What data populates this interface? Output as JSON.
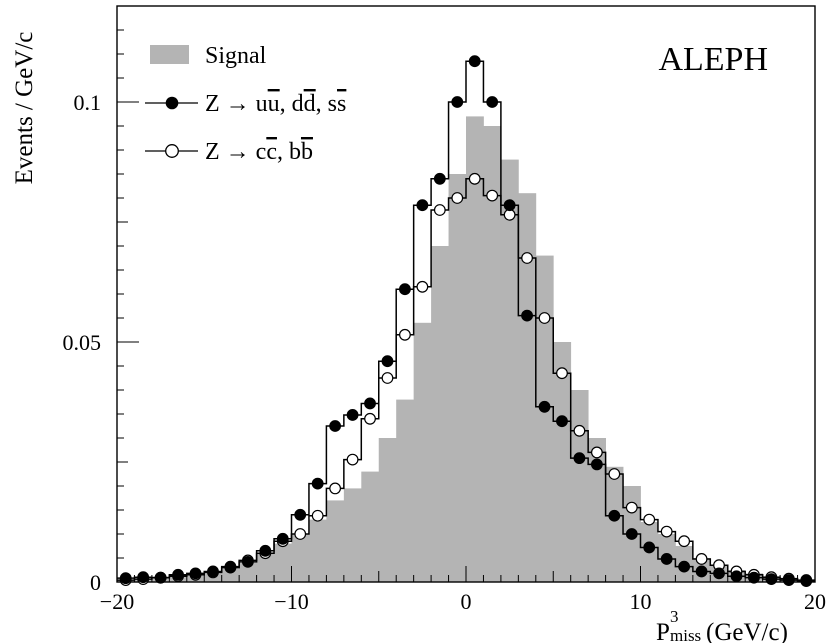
{
  "chart_data": {
    "type": "histogram",
    "logo": "ALEPH",
    "xlabel_base": "P",
    "xlabel_sup": "3",
    "xlabel_sub": "miss",
    "xlabel_unit": "(GeV/c)",
    "ylabel": "Events / GeV/c",
    "xlim": [
      -20,
      20
    ],
    "ylim": [
      0,
      0.12
    ],
    "bin_width": 1,
    "x_ticks": [
      -20,
      -10,
      0,
      10,
      20
    ],
    "x_tick_labels": [
      "−20",
      "−10",
      "0",
      "10",
      "20"
    ],
    "y_ticks": [
      0,
      0.05,
      0.1
    ],
    "y_tick_labels": [
      "0",
      "0.05",
      "0.1"
    ],
    "legend_position": "top-left",
    "colors": {
      "signal": "#b4b4b4",
      "line": "#000000"
    },
    "bin_centers": [
      -19.5,
      -18.5,
      -17.5,
      -16.5,
      -15.5,
      -14.5,
      -13.5,
      -12.5,
      -11.5,
      -10.5,
      -9.5,
      -8.5,
      -7.5,
      -6.5,
      -5.5,
      -4.5,
      -3.5,
      -2.5,
      -1.5,
      -0.5,
      0.5,
      1.5,
      2.5,
      3.5,
      4.5,
      5.5,
      6.5,
      7.5,
      8.5,
      9.5,
      10.5,
      11.5,
      12.5,
      13.5,
      14.5,
      15.5,
      16.5,
      17.5,
      18.5,
      19.5
    ],
    "series": [
      {
        "name": "Signal",
        "style": "filled",
        "values": [
          0.0005,
          0.0008,
          0.001,
          0.0012,
          0.0015,
          0.002,
          0.0028,
          0.004,
          0.006,
          0.008,
          0.01,
          0.013,
          0.017,
          0.0195,
          0.023,
          0.03,
          0.038,
          0.054,
          0.07,
          0.085,
          0.097,
          0.095,
          0.088,
          0.081,
          0.068,
          0.05,
          0.04,
          0.03,
          0.024,
          0.02,
          0.0125,
          0.01,
          0.0075,
          0.005,
          0.0035,
          0.0025,
          0.0018,
          0.0012,
          0.0008,
          0.0005
        ]
      },
      {
        "name_parts": {
          "base": "Z → u",
          "bar1": "u",
          "mid1": ", d",
          "bar2": "d",
          "mid2": ", s",
          "bar3": "s"
        },
        "style": "filled-circle",
        "values": [
          0.0008,
          0.001,
          0.0009,
          0.0015,
          0.0018,
          0.0022,
          0.003,
          0.0042,
          0.0065,
          0.009,
          0.014,
          0.0205,
          0.0325,
          0.0348,
          0.0372,
          0.046,
          0.061,
          0.0785,
          0.084,
          0.1,
          0.1085,
          0.1,
          0.0785,
          0.0555,
          0.0365,
          0.0335,
          0.0258,
          0.0245,
          0.0138,
          0.01,
          0.0072,
          0.0048,
          0.0032,
          0.0022,
          0.0018,
          0.0012,
          0.0009,
          0.0006,
          0.0004,
          0.0002
        ]
      },
      {
        "name_parts": {
          "base": "Z → c",
          "bar1": "c",
          "mid1": ", b",
          "bar2": "b"
        },
        "style": "open-circle",
        "values": [
          0.0004,
          0.0006,
          0.0009,
          0.0012,
          0.0015,
          0.002,
          0.0032,
          0.0045,
          0.006,
          0.0085,
          0.01,
          0.0138,
          0.0195,
          0.0255,
          0.034,
          0.0425,
          0.0515,
          0.0615,
          0.0775,
          0.08,
          0.084,
          0.0805,
          0.0765,
          0.0675,
          0.055,
          0.0435,
          0.0315,
          0.027,
          0.0225,
          0.0155,
          0.013,
          0.0105,
          0.0085,
          0.0048,
          0.0035,
          0.0022,
          0.0015,
          0.001,
          0.0007,
          0.0004
        ]
      }
    ]
  }
}
